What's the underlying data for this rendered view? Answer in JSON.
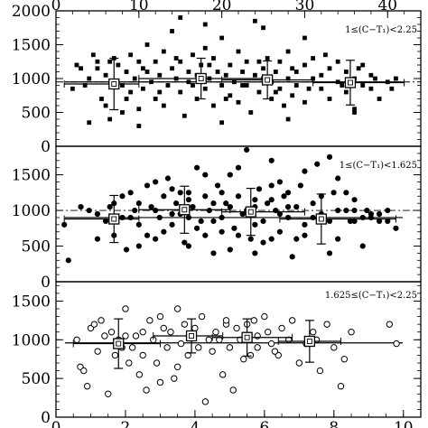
{
  "figure": {
    "background": "#ffffff",
    "ink": "#000000"
  },
  "chart_data": [
    {
      "type": "scatter",
      "label_text": "1≤(C−T₁)<2.25",
      "marker": "filled-square",
      "x_top_ticks": [
        "0",
        "10",
        "20",
        "30",
        "40"
      ],
      "xlim": [
        0,
        44
      ],
      "ylim": [
        0,
        2000
      ],
      "yticks": [
        "0",
        "500",
        "1000",
        "1500",
        "2000"
      ],
      "mean_line": 950,
      "dashdot_line": 950,
      "points": [
        [
          2,
          850
        ],
        [
          3,
          1150
        ],
        [
          3.5,
          900
        ],
        [
          4,
          1000
        ],
        [
          4,
          350
        ],
        [
          5,
          1250
        ],
        [
          5,
          1150
        ],
        [
          5.5,
          700
        ],
        [
          6,
          1050
        ],
        [
          6,
          600
        ],
        [
          6.5,
          400
        ],
        [
          7,
          950
        ],
        [
          7,
          1300
        ],
        [
          7.5,
          1200
        ],
        [
          8,
          900
        ],
        [
          8,
          500
        ],
        [
          8.5,
          1100
        ],
        [
          9,
          1350
        ],
        [
          9,
          800
        ],
        [
          9.5,
          1000
        ],
        [
          10,
          1250
        ],
        [
          10,
          550
        ],
        [
          10.5,
          850
        ],
        [
          11,
          1100
        ],
        [
          11,
          1500
        ],
        [
          11.5,
          950
        ],
        [
          12,
          700
        ],
        [
          12,
          1250
        ],
        [
          12.5,
          1050
        ],
        [
          13,
          1400
        ],
        [
          13,
          600
        ],
        [
          13.5,
          900
        ],
        [
          14,
          1150
        ],
        [
          14,
          1700
        ],
        [
          14.5,
          1000
        ],
        [
          15,
          800
        ],
        [
          15,
          1250
        ],
        [
          15.5,
          450
        ],
        [
          16,
          1100
        ],
        [
          16,
          950
        ],
        [
          16.5,
          1350
        ],
        [
          17,
          700
        ],
        [
          17,
          1050
        ],
        [
          17.5,
          1200
        ],
        [
          18,
          850
        ],
        [
          18,
          1450
        ],
        [
          18.5,
          1000
        ],
        [
          19,
          1300
        ],
        [
          19,
          600
        ],
        [
          19.5,
          1100
        ],
        [
          20,
          900
        ],
        [
          20,
          1600
        ],
        [
          20.5,
          1050
        ],
        [
          21,
          750
        ],
        [
          21,
          1200
        ],
        [
          21.5,
          950
        ],
        [
          22,
          1400
        ],
        [
          22,
          650
        ],
        [
          22.5,
          1100
        ],
        [
          23,
          900
        ],
        [
          23,
          1250
        ],
        [
          23.5,
          500
        ],
        [
          24,
          1050
        ],
        [
          24,
          1850
        ],
        [
          24.5,
          800
        ],
        [
          25,
          1150
        ],
        [
          25,
          1000
        ],
        [
          25.5,
          1300
        ],
        [
          26,
          700
        ],
        [
          26,
          950
        ],
        [
          26.5,
          1100
        ],
        [
          27,
          850
        ],
        [
          27,
          1250
        ],
        [
          27.5,
          600
        ],
        [
          28,
          1000
        ],
        [
          28,
          1400
        ],
        [
          28.5,
          750
        ],
        [
          29,
          1100
        ],
        [
          29,
          900
        ],
        [
          30,
          1200
        ],
        [
          30,
          650
        ],
        [
          31,
          1000
        ],
        [
          31,
          1300
        ],
        [
          32,
          850
        ],
        [
          32,
          1050
        ],
        [
          33,
          1150
        ],
        [
          33,
          700
        ],
        [
          34,
          950
        ],
        [
          34,
          1250
        ],
        [
          35,
          800
        ],
        [
          35,
          1100
        ],
        [
          36,
          1000
        ],
        [
          36,
          550
        ],
        [
          37,
          900
        ],
        [
          37,
          1200
        ],
        [
          38,
          850
        ],
        [
          38,
          1050
        ],
        [
          39,
          700
        ],
        [
          40,
          950
        ],
        [
          41,
          1000
        ],
        [
          2.5,
          1200
        ],
        [
          4.5,
          1350
        ],
        [
          6.5,
          1250
        ],
        [
          8.5,
          700
        ],
        [
          10.5,
          1150
        ],
        [
          12.5,
          800
        ],
        [
          14.5,
          1300
        ],
        [
          16.5,
          900
        ],
        [
          18.5,
          1200
        ],
        [
          20.5,
          700
        ],
        [
          22.5,
          900
        ],
        [
          24.5,
          1250
        ],
        [
          26.5,
          800
        ],
        [
          28.5,
          1150
        ],
        [
          30.5,
          850
        ],
        [
          32.5,
          1350
        ],
        [
          34.5,
          900
        ],
        [
          36.5,
          1150
        ],
        [
          38.5,
          1000
        ],
        [
          40.5,
          850
        ],
        [
          15,
          1900
        ],
        [
          18,
          1800
        ],
        [
          25,
          1750
        ],
        [
          30,
          1600
        ],
        [
          10,
          300
        ],
        [
          20,
          350
        ],
        [
          28,
          400
        ],
        [
          36,
          500
        ]
      ],
      "summary": [
        {
          "x": 7,
          "y": 920,
          "err": 380,
          "xmin": 1,
          "xmax": 10
        },
        {
          "x": 17.5,
          "y": 1000,
          "err": 300,
          "xmin": 10,
          "xmax": 25
        },
        {
          "x": 25.5,
          "y": 980,
          "err": 280,
          "xmin": 20,
          "xmax": 31
        },
        {
          "x": 35.5,
          "y": 940,
          "err": 330,
          "xmin": 31,
          "xmax": 42
        }
      ]
    },
    {
      "type": "scatter",
      "label_text": "1≤(C−T₁)<1.625",
      "marker": "filled-circle",
      "xlim": [
        0,
        44
      ],
      "ylim": [
        0,
        1900
      ],
      "yticks": [
        "0",
        "500",
        "1000",
        "1500"
      ],
      "mean_line": 900,
      "dashdot_line": 1000,
      "points": [
        [
          1,
          800
        ],
        [
          1.5,
          300
        ],
        [
          3,
          1050
        ],
        [
          4,
          1000
        ],
        [
          5,
          950
        ],
        [
          6,
          850
        ],
        [
          6.5,
          1050
        ],
        [
          7,
          650
        ],
        [
          8,
          900
        ],
        [
          8.5,
          450
        ],
        [
          9,
          1250
        ],
        [
          9.5,
          1000
        ],
        [
          10,
          800
        ],
        [
          11,
          1350
        ],
        [
          11.5,
          1050
        ],
        [
          12,
          600
        ],
        [
          12.5,
          900
        ],
        [
          13,
          1200
        ],
        [
          13.5,
          1450
        ],
        [
          14,
          800
        ],
        [
          14.5,
          1100
        ],
        [
          15,
          950
        ],
        [
          15.5,
          550
        ],
        [
          16,
          1250
        ],
        [
          16.5,
          1050
        ],
        [
          17,
          1600
        ],
        [
          17.5,
          850
        ],
        [
          18,
          1200
        ],
        [
          18.5,
          1000
        ],
        [
          19,
          400
        ],
        [
          19.5,
          1350
        ],
        [
          20,
          900
        ],
        [
          20.5,
          1100
        ],
        [
          21,
          1500
        ],
        [
          21.5,
          750
        ],
        [
          22,
          1200
        ],
        [
          22.5,
          950
        ],
        [
          23,
          1850
        ],
        [
          23.5,
          600
        ],
        [
          24,
          1050
        ],
        [
          24.5,
          1300
        ],
        [
          25,
          850
        ],
        [
          25.5,
          1100
        ],
        [
          26,
          1700
        ],
        [
          26.5,
          1000
        ],
        [
          27,
          700
        ],
        [
          27.5,
          1200
        ],
        [
          28,
          900
        ],
        [
          28.5,
          350
        ],
        [
          29,
          1050
        ],
        [
          29.5,
          1350
        ],
        [
          30,
          800
        ],
        [
          31,
          1100
        ],
        [
          31.5,
          1650
        ],
        [
          32,
          950
        ],
        [
          33,
          1750
        ],
        [
          33.5,
          1250
        ],
        [
          34,
          600
        ],
        [
          35,
          1000
        ],
        [
          35.5,
          850
        ],
        [
          36,
          1150
        ],
        [
          37,
          500
        ],
        [
          37.5,
          1000
        ],
        [
          38,
          900
        ],
        [
          39,
          950
        ],
        [
          40,
          850
        ],
        [
          41,
          750
        ],
        [
          13,
          700
        ],
        [
          16,
          500
        ],
        [
          18,
          650
        ],
        [
          21,
          450
        ],
        [
          24,
          400
        ],
        [
          27,
          1400
        ],
        [
          30,
          1550
        ],
        [
          8,
          1200
        ],
        [
          10,
          1100
        ],
        [
          12,
          1000
        ],
        [
          14,
          1300
        ],
        [
          16,
          900
        ],
        [
          18,
          1500
        ],
        [
          20,
          1250
        ],
        [
          22,
          650
        ],
        [
          24,
          800
        ],
        [
          26,
          1150
        ],
        [
          28,
          1050
        ],
        [
          30,
          650
        ],
        [
          32,
          1200
        ],
        [
          34,
          1000
        ],
        [
          36,
          850
        ],
        [
          23,
          1000
        ],
        [
          25,
          550
        ],
        [
          27,
          950
        ],
        [
          29,
          600
        ],
        [
          15,
          1250
        ],
        [
          17,
          750
        ],
        [
          19,
          850
        ],
        [
          21,
          1050
        ],
        [
          11,
          650
        ],
        [
          9,
          900
        ],
        [
          7,
          1100
        ],
        [
          5,
          600
        ],
        [
          33,
          850
        ],
        [
          35,
          1250
        ],
        [
          37,
          900
        ],
        [
          39,
          850
        ],
        [
          22,
          1600
        ],
        [
          26,
          1350
        ],
        [
          28,
          1250
        ],
        [
          34,
          1450
        ],
        [
          19,
          1100
        ],
        [
          14,
          950
        ],
        [
          16,
          1150
        ],
        [
          20,
          700
        ],
        [
          24,
          1150
        ],
        [
          26,
          600
        ],
        [
          12,
          1400
        ],
        [
          10,
          500
        ],
        [
          31,
          900
        ],
        [
          33,
          400
        ],
        [
          36,
          1000
        ],
        [
          38,
          950
        ],
        [
          40,
          1000
        ]
      ],
      "summary": [
        {
          "x": 7,
          "y": 880,
          "err": 330,
          "xmin": 1,
          "xmax": 10
        },
        {
          "x": 15.5,
          "y": 1010,
          "err": 330,
          "xmin": 10,
          "xmax": 21
        },
        {
          "x": 23.5,
          "y": 980,
          "err": 330,
          "xmin": 20,
          "xmax": 30
        },
        {
          "x": 32,
          "y": 880,
          "err": 350,
          "xmin": 27,
          "xmax": 41
        }
      ]
    },
    {
      "type": "scatter",
      "label_text": "1.625≤(C−T₁)<2.25",
      "marker": "open-circle",
      "x_bottom_ticks": [
        "0",
        "2",
        "4",
        "6",
        "8",
        "10"
      ],
      "xlim": [
        0,
        10.5
      ],
      "ylim": [
        0,
        1750
      ],
      "yticks": [
        "0",
        "500",
        "1000",
        "1500"
      ],
      "mean_line": 960,
      "points": [
        [
          0.6,
          1000
        ],
        [
          0.7,
          650
        ],
        [
          0.8,
          600
        ],
        [
          0.9,
          400
        ],
        [
          1.0,
          1150
        ],
        [
          1.1,
          1200
        ],
        [
          1.2,
          850
        ],
        [
          1.4,
          1050
        ],
        [
          1.5,
          300
        ],
        [
          1.6,
          1100
        ],
        [
          1.7,
          800
        ],
        [
          1.8,
          1000
        ],
        [
          2.0,
          1400
        ],
        [
          2.1,
          700
        ],
        [
          2.2,
          900
        ],
        [
          2.3,
          1050
        ],
        [
          2.4,
          550
        ],
        [
          2.5,
          1100
        ],
        [
          2.6,
          350
        ],
        [
          2.7,
          1250
        ],
        [
          2.8,
          1000
        ],
        [
          2.9,
          700
        ],
        [
          3.0,
          450
        ],
        [
          3.1,
          1150
        ],
        [
          3.2,
          900
        ],
        [
          3.3,
          1100
        ],
        [
          3.4,
          500
        ],
        [
          3.5,
          1400
        ],
        [
          3.6,
          950
        ],
        [
          3.7,
          1200
        ],
        [
          3.8,
          800
        ],
        [
          3.9,
          1050
        ],
        [
          4.0,
          1150
        ],
        [
          4.1,
          900
        ],
        [
          4.2,
          1300
        ],
        [
          4.3,
          200
        ],
        [
          4.4,
          1000
        ],
        [
          4.5,
          850
        ],
        [
          4.6,
          1100
        ],
        [
          4.7,
          1000
        ],
        [
          4.8,
          550
        ],
        [
          4.9,
          1200
        ],
        [
          5.0,
          900
        ],
        [
          5.1,
          350
        ],
        [
          5.2,
          1150
        ],
        [
          5.3,
          1000
        ],
        [
          5.4,
          750
        ],
        [
          5.5,
          1050
        ],
        [
          5.6,
          800
        ],
        [
          5.7,
          1250
        ],
        [
          5.8,
          900
        ],
        [
          6.0,
          1300
        ],
        [
          6.1,
          1100
        ],
        [
          6.2,
          950
        ],
        [
          6.4,
          800
        ],
        [
          6.5,
          1150
        ],
        [
          6.7,
          1000
        ],
        [
          6.8,
          1250
        ],
        [
          7.0,
          700
        ],
        [
          7.2,
          950
        ],
        [
          7.4,
          1100
        ],
        [
          7.6,
          600
        ],
        [
          7.8,
          1200
        ],
        [
          8.0,
          900
        ],
        [
          8.2,
          400
        ],
        [
          8.5,
          1100
        ],
        [
          9.6,
          1200
        ],
        [
          9.8,
          950
        ],
        [
          1.3,
          1250
        ],
        [
          2.0,
          1050
        ],
        [
          3.5,
          650
        ],
        [
          5.5,
          1200
        ],
        [
          6.3,
          850
        ],
        [
          7.5,
          1000
        ],
        [
          8.3,
          750
        ],
        [
          4.9,
          1250
        ],
        [
          3.0,
          1300
        ],
        [
          2.5,
          800
        ],
        [
          1.9,
          900
        ],
        [
          5.8,
          1050
        ]
      ],
      "summary": [
        {
          "x": 1.8,
          "y": 950,
          "err": 320,
          "xmin": 0.5,
          "xmax": 3.0
        },
        {
          "x": 3.9,
          "y": 1050,
          "err": 220,
          "xmin": 2.8,
          "xmax": 4.8
        },
        {
          "x": 5.5,
          "y": 1030,
          "err": 240,
          "xmin": 4.5,
          "xmax": 6.8
        },
        {
          "x": 7.3,
          "y": 980,
          "err": 270,
          "xmin": 6.4,
          "xmax": 8.2
        }
      ]
    }
  ]
}
